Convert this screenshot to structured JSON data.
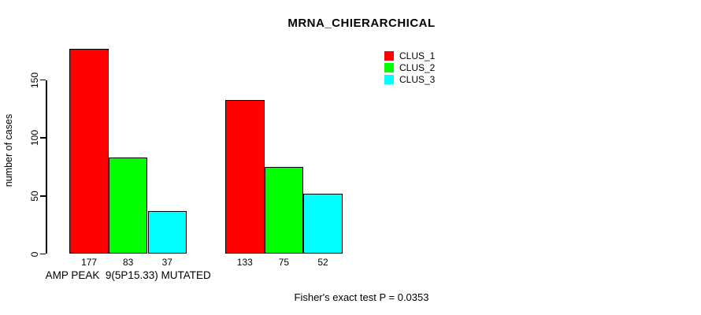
{
  "title": "MRNA_CHIERARCHICAL",
  "y_axis_title": "number of cases",
  "footer_note": "Fisher's exact test P = 0.0353",
  "colors": {
    "clus_1": "#FF0000",
    "clus_2": "#00FF00",
    "clus_3": "#00FFFF",
    "axis": "#000000",
    "background": "#FFFFFF"
  },
  "legend": {
    "position": "top-right",
    "entries": [
      {
        "label": "CLUS_1",
        "color": "#FF0000"
      },
      {
        "label": "CLUS_2",
        "color": "#00FF00"
      },
      {
        "label": "CLUS_3",
        "color": "#00FFFF"
      }
    ]
  },
  "chart_data": {
    "type": "bar",
    "title": "MRNA_CHIERARCHICAL",
    "xlabel": "",
    "ylabel": "number of cases",
    "categories": [
      "AMP PEAK  9(5P15.33) MUTATED",
      ""
    ],
    "series": [
      {
        "name": "CLUS_1",
        "color": "#FF0000",
        "values": [
          177,
          133
        ]
      },
      {
        "name": "CLUS_2",
        "color": "#00FF00",
        "values": [
          83,
          75
        ]
      },
      {
        "name": "CLUS_3",
        "color": "#00FFFF",
        "values": [
          37,
          52
        ]
      }
    ],
    "bar_value_labels": [
      [
        177,
        83,
        37
      ],
      [
        133,
        75,
        52
      ]
    ],
    "yticks": [
      0,
      50,
      100,
      150
    ],
    "ylim": [
      0,
      177
    ],
    "grid": false,
    "legend_position": "top-right",
    "annotation": "Fisher's exact test P = 0.0353"
  }
}
